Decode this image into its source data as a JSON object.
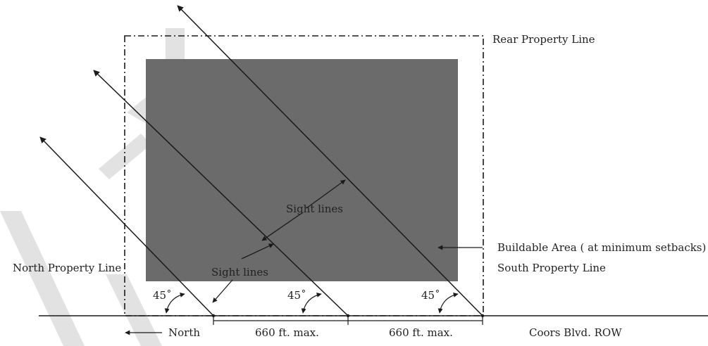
{
  "labels": {
    "rear_property_line": "Rear Property Line",
    "north_property_line": "North Property Line",
    "south_property_line": "South Property Line",
    "buildable_area": "Buildable Area ( at minimum setbacks)",
    "sight_lines_upper": "Sight lines",
    "sight_lines_lower": "Sight lines",
    "angle_1": "45˚",
    "angle_2": "45˚",
    "angle_3": "45˚",
    "north": "North",
    "spacing_1": "660 ft. max.",
    "spacing_2": "660 ft. max.",
    "row": "Coors Blvd. ROW",
    "watermark": "DRAFT"
  },
  "colors": {
    "buildable_fill": "#6b6b6c",
    "line": "#1a1a1a",
    "watermark": "#e2e2e2"
  },
  "icons": {
    "north_arrow": "arrow-left-icon",
    "angle_markers": "curved-double-arrow-icon",
    "sight_line_pointers": "arrow-icon"
  }
}
